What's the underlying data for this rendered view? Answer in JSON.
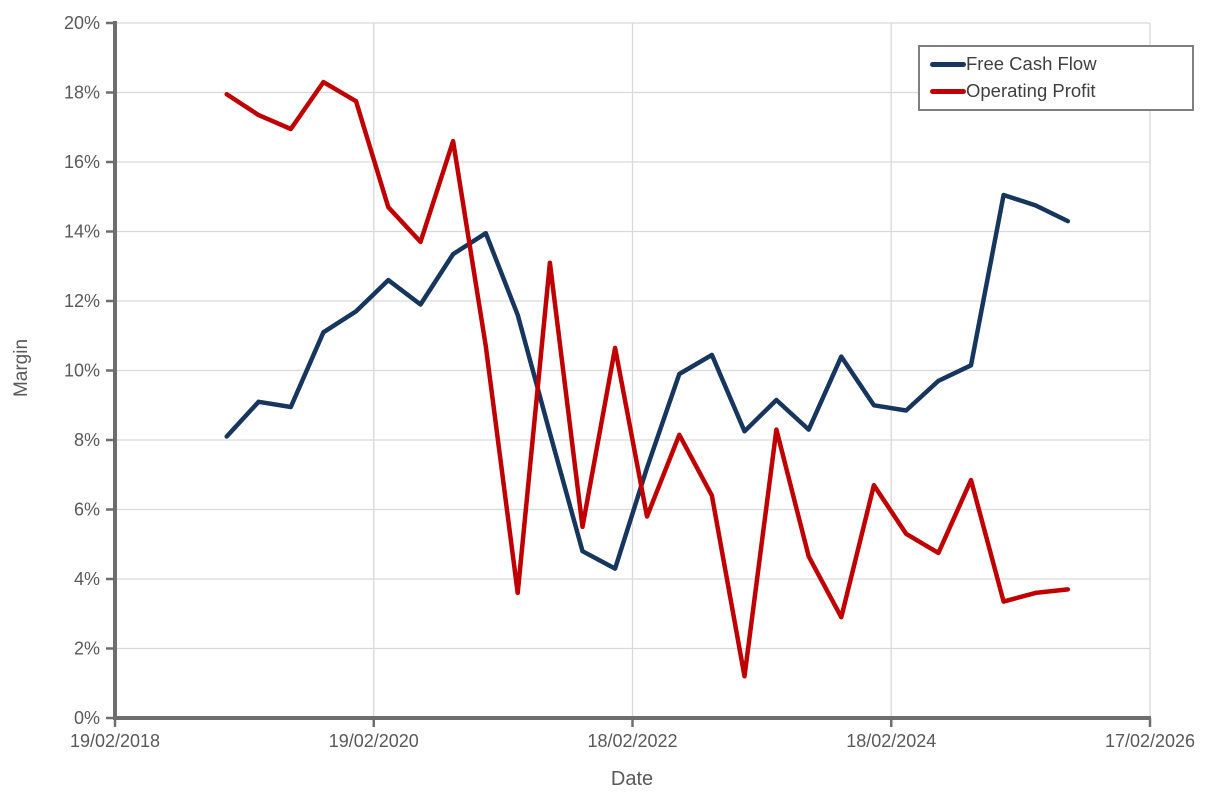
{
  "colors": {
    "background": "#FFFFFF",
    "gridline": "#D9D9D9",
    "axis_line": "#6E6E6E",
    "tick_label": "#595959",
    "axis_title": "#595959",
    "legend_border": "#7F7F7F",
    "legend_text": "#3F3F3F",
    "free_cash_flow": "#16365D",
    "operating_profit": "#C00000"
  },
  "legend": {
    "items": [
      {
        "label": "Free Cash Flow",
        "color": "#16365D"
      },
      {
        "label": "Operating Profit",
        "color": "#C00000"
      }
    ]
  },
  "chart_data": {
    "type": "line",
    "title": "",
    "xlabel": "Date",
    "ylabel": "Margin",
    "grid": true,
    "legend_position": "top-right",
    "x_axis": {
      "min_date": "2018-02-19",
      "max_date": "2026-02-17",
      "ticks": [
        {
          "label": "19/02/2018",
          "date": "2018-02-19"
        },
        {
          "label": "19/02/2020",
          "date": "2020-02-19"
        },
        {
          "label": "18/02/2022",
          "date": "2022-02-18"
        },
        {
          "label": "18/02/2024",
          "date": "2024-02-18"
        },
        {
          "label": "17/02/2026",
          "date": "2026-02-17"
        }
      ]
    },
    "y_axis": {
      "min": 0,
      "max": 20,
      "step": 2,
      "tick_labels": [
        "0%",
        "2%",
        "4%",
        "6%",
        "8%",
        "10%",
        "12%",
        "14%",
        "16%",
        "18%",
        "20%"
      ]
    },
    "x": [
      "2018-12-31",
      "2019-03-31",
      "2019-06-30",
      "2019-09-30",
      "2019-12-31",
      "2020-03-31",
      "2020-06-30",
      "2020-09-30",
      "2020-12-31",
      "2021-03-31",
      "2021-06-30",
      "2021-09-30",
      "2021-12-31",
      "2022-03-31",
      "2022-06-30",
      "2022-09-30",
      "2022-12-31",
      "2023-03-31",
      "2023-06-30",
      "2023-09-30",
      "2023-12-31",
      "2024-03-31",
      "2024-06-30",
      "2024-09-30",
      "2024-12-31",
      "2025-03-31",
      "2025-06-30"
    ],
    "series": [
      {
        "name": "Free Cash Flow",
        "color": "#16365D",
        "unit": "%",
        "values": [
          8.1,
          9.1,
          8.95,
          11.1,
          11.7,
          12.6,
          11.9,
          13.35,
          13.95,
          11.6,
          8.2,
          4.8,
          4.3,
          7.2,
          9.9,
          10.45,
          8.25,
          9.15,
          8.3,
          10.4,
          9.0,
          8.85,
          9.7,
          10.15,
          15.05,
          14.75,
          14.3
        ]
      },
      {
        "name": "Operating Profit",
        "color": "#C00000",
        "unit": "%",
        "values": [
          17.95,
          17.35,
          16.95,
          18.3,
          17.75,
          14.7,
          13.7,
          16.6,
          10.7,
          3.6,
          13.1,
          5.5,
          10.65,
          5.8,
          8.15,
          6.4,
          1.2,
          8.3,
          4.65,
          2.9,
          6.7,
          5.3,
          4.75,
          6.85,
          3.35,
          3.6,
          3.7
        ]
      }
    ]
  }
}
